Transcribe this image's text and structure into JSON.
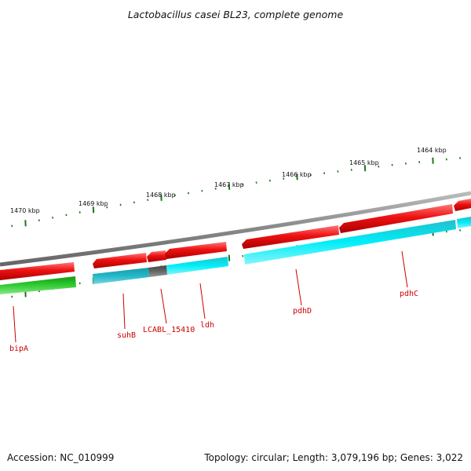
{
  "title": "Lactobacillus casei BL23, complete genome",
  "accession": "Accession: NC_010999",
  "topology": "Topology: circular; Length: 3,079,196 bp; Genes: 3,022",
  "colors": {
    "backbone": "#888888",
    "forward": "#ee1111",
    "reverse_cyan": "#00e0ee",
    "reverse_teal": "#22b8c8",
    "reverse_gray": "#666666",
    "reverse_green": "#33cc33",
    "tick": "#1a7a1a",
    "label": "#cc0000"
  },
  "kbp_labels": [
    "1470 kbp",
    "1469 kbp",
    "1468 kbp",
    "1467 kbp",
    "1466 kbp",
    "1465 kbp",
    "1464 kbp"
  ],
  "gene_labels": [
    "bipA",
    "suhB",
    "LCABL_15410",
    "ldh",
    "pdhD",
    "pdhC"
  ]
}
